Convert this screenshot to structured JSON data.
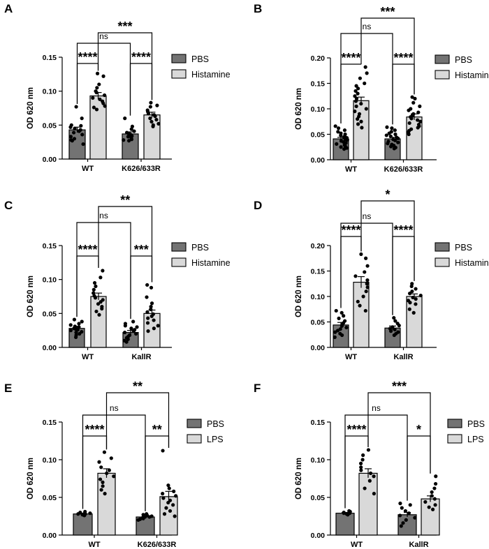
{
  "chart_data": [
    {
      "panel": "A",
      "type": "bar",
      "ylabel": "OD 620 nm",
      "ylim": [
        0,
        0.15
      ],
      "yticks": [
        "0.00",
        "0.05",
        "0.10",
        "0.15"
      ],
      "categories": [
        "WT",
        "K626/633R"
      ],
      "legend": [
        "PBS",
        "Histamine"
      ],
      "series": [
        {
          "name": "PBS",
          "color": "#737373",
          "means": [
            0.043,
            0.037
          ],
          "sem": [
            0.004,
            0.003
          ],
          "points": [
            [
              0.077,
              0.06,
              0.05,
              0.049,
              0.047,
              0.045,
              0.043,
              0.041,
              0.039,
              0.036,
              0.033,
              0.03,
              0.028,
              0.027,
              0.022
            ],
            [
              0.06,
              0.048,
              0.044,
              0.041,
              0.039,
              0.037,
              0.036,
              0.035,
              0.034,
              0.033,
              0.031,
              0.029,
              0.028,
              0.027
            ]
          ]
        },
        {
          "name": "Histamine",
          "color": "#d9d9d9",
          "means": [
            0.093,
            0.065
          ],
          "sem": [
            0.005,
            0.004
          ],
          "points": [
            [
              0.126,
              0.122,
              0.11,
              0.105,
              0.1,
              0.098,
              0.094,
              0.09,
              0.088,
              0.085,
              0.082,
              0.078,
              0.076,
              0.073
            ],
            [
              0.083,
              0.079,
              0.077,
              0.072,
              0.07,
              0.067,
              0.065,
              0.063,
              0.06,
              0.058,
              0.055,
              0.052,
              0.05,
              0.048
            ]
          ]
        }
      ],
      "significance": [
        {
          "label": "****",
          "from": [
            0,
            0
          ],
          "to": [
            0,
            1
          ]
        },
        {
          "label": "****",
          "from": [
            1,
            0
          ],
          "to": [
            1,
            1
          ]
        },
        {
          "label": "***",
          "from": [
            0,
            1
          ],
          "to": [
            1,
            1
          ]
        },
        {
          "label": "ns",
          "from": [
            0,
            0
          ],
          "to": [
            1,
            0
          ]
        }
      ]
    },
    {
      "panel": "B",
      "type": "bar",
      "ylabel": "OD 620 nm",
      "ylim": [
        0,
        0.2
      ],
      "yticks": [
        "0.00",
        "0.05",
        "0.10",
        "0.15",
        "0.20"
      ],
      "categories": [
        "WT",
        "K626/633R"
      ],
      "legend": [
        "PBS",
        "Histamine"
      ],
      "series": [
        {
          "name": "PBS",
          "color": "#737373",
          "means": [
            0.041,
            0.041
          ],
          "sem": [
            0.003,
            0.003
          ],
          "points": [
            [
              0.066,
              0.062,
              0.058,
              0.055,
              0.052,
              0.05,
              0.048,
              0.046,
              0.044,
              0.043,
              0.041,
              0.04,
              0.039,
              0.037,
              0.035,
              0.033,
              0.031,
              0.029,
              0.027,
              0.025,
              0.023,
              0.021
            ],
            [
              0.064,
              0.062,
              0.058,
              0.055,
              0.052,
              0.05,
              0.048,
              0.046,
              0.044,
              0.042,
              0.04,
              0.038,
              0.036,
              0.034,
              0.032,
              0.03,
              0.028,
              0.026,
              0.024,
              0.022
            ]
          ]
        },
        {
          "name": "Histamine",
          "color": "#d9d9d9",
          "means": [
            0.116,
            0.084
          ],
          "sem": [
            0.007,
            0.006
          ],
          "points": [
            [
              0.182,
              0.17,
              0.16,
              0.15,
              0.145,
              0.14,
              0.135,
              0.13,
              0.125,
              0.12,
              0.115,
              0.11,
              0.105,
              0.1,
              0.095,
              0.09,
              0.085,
              0.08,
              0.075,
              0.07,
              0.063
            ],
            [
              0.123,
              0.12,
              0.112,
              0.105,
              0.1,
              0.097,
              0.093,
              0.09,
              0.087,
              0.084,
              0.081,
              0.078,
              0.075,
              0.072,
              0.069,
              0.066,
              0.063,
              0.06,
              0.057,
              0.054,
              0.05
            ]
          ]
        }
      ],
      "significance": [
        {
          "label": "****",
          "from": [
            0,
            0
          ],
          "to": [
            0,
            1
          ]
        },
        {
          "label": "****",
          "from": [
            1,
            0
          ],
          "to": [
            1,
            1
          ]
        },
        {
          "label": "ns",
          "from": [
            0,
            0
          ],
          "to": [
            1,
            0
          ]
        },
        {
          "label": "***",
          "from": [
            0,
            1
          ],
          "to": [
            1,
            1
          ]
        }
      ]
    },
    {
      "panel": "C",
      "type": "bar",
      "ylabel": "OD 620 nm",
      "ylim": [
        0,
        0.15
      ],
      "yticks": [
        "0.00",
        "0.05",
        "0.10",
        "0.15"
      ],
      "categories": [
        "WT",
        "KallR"
      ],
      "legend": [
        "PBS",
        "Histamine"
      ],
      "series": [
        {
          "name": "PBS",
          "color": "#737373",
          "means": [
            0.028,
            0.022
          ],
          "sem": [
            0.003,
            0.003
          ],
          "points": [
            [
              0.041,
              0.038,
              0.035,
              0.033,
              0.031,
              0.03,
              0.028,
              0.027,
              0.026,
              0.025,
              0.023,
              0.022,
              0.02,
              0.018,
              0.015
            ],
            [
              0.038,
              0.035,
              0.032,
              0.03,
              0.028,
              0.026,
              0.024,
              0.022,
              0.02,
              0.018,
              0.016,
              0.014,
              0.012,
              0.01,
              0.008
            ]
          ]
        },
        {
          "name": "Histamine",
          "color": "#d9d9d9",
          "means": [
            0.075,
            0.05
          ],
          "sem": [
            0.005,
            0.005
          ],
          "points": [
            [
              0.113,
              0.103,
              0.095,
              0.09,
              0.085,
              0.08,
              0.076,
              0.073,
              0.07,
              0.067,
              0.064,
              0.06,
              0.057,
              0.053,
              0.048
            ],
            [
              0.092,
              0.088,
              0.074,
              0.065,
              0.06,
              0.056,
              0.052,
              0.049,
              0.046,
              0.043,
              0.04,
              0.036,
              0.032,
              0.028,
              0.024
            ]
          ]
        }
      ],
      "significance": [
        {
          "label": "****",
          "from": [
            0,
            0
          ],
          "to": [
            0,
            1
          ]
        },
        {
          "label": "***",
          "from": [
            1,
            0
          ],
          "to": [
            1,
            1
          ]
        },
        {
          "label": "ns",
          "from": [
            0,
            0
          ],
          "to": [
            1,
            0
          ]
        },
        {
          "label": "**",
          "from": [
            0,
            1
          ],
          "to": [
            1,
            1
          ]
        }
      ]
    },
    {
      "panel": "D",
      "type": "bar",
      "ylabel": "OD 620 nm",
      "ylim": [
        0,
        0.2
      ],
      "yticks": [
        "0.00",
        "0.05",
        "0.10",
        "0.15",
        "0.20"
      ],
      "categories": [
        "WT",
        "KallR"
      ],
      "legend": [
        "PBS",
        "Histamine"
      ],
      "series": [
        {
          "name": "PBS",
          "color": "#737373",
          "means": [
            0.044,
            0.038
          ],
          "sem": [
            0.005,
            0.004
          ],
          "points": [
            [
              0.072,
              0.068,
              0.062,
              0.057,
              0.052,
              0.048,
              0.045,
              0.042,
              0.039,
              0.036,
              0.033,
              0.03,
              0.027,
              0.024,
              0.02
            ],
            [
              0.058,
              0.052,
              0.047,
              0.043,
              0.04,
              0.037,
              0.035,
              0.032,
              0.03,
              0.027,
              0.024
            ]
          ]
        },
        {
          "name": "Histamine",
          "color": "#d9d9d9",
          "means": [
            0.128,
            0.1
          ],
          "sem": [
            0.011,
            0.005
          ],
          "points": [
            [
              0.183,
              0.175,
              0.16,
              0.148,
              0.14,
              0.132,
              0.125,
              0.118,
              0.11,
              0.1,
              0.09,
              0.082,
              0.072
            ],
            [
              0.125,
              0.12,
              0.115,
              0.11,
              0.106,
              0.102,
              0.098,
              0.095,
              0.092,
              0.088,
              0.085,
              0.075,
              0.068
            ]
          ]
        }
      ],
      "significance": [
        {
          "label": "****",
          "from": [
            0,
            0
          ],
          "to": [
            0,
            1
          ]
        },
        {
          "label": "****",
          "from": [
            1,
            0
          ],
          "to": [
            1,
            1
          ]
        },
        {
          "label": "ns",
          "from": [
            0,
            0
          ],
          "to": [
            1,
            0
          ]
        },
        {
          "label": "*",
          "from": [
            0,
            1
          ],
          "to": [
            1,
            1
          ]
        }
      ]
    },
    {
      "panel": "E",
      "type": "bar",
      "ylabel": "OD 620 nm",
      "ylim": [
        0,
        0.15
      ],
      "yticks": [
        "0.00",
        "0.05",
        "0.10",
        "0.15"
      ],
      "categories": [
        "WT",
        "K626/633R"
      ],
      "legend": [
        "PBS",
        "LPS"
      ],
      "series": [
        {
          "name": "PBS",
          "color": "#737373",
          "means": [
            0.028,
            0.024
          ],
          "sem": [
            0.001,
            0.001
          ],
          "points": [
            [
              0.031,
              0.03,
              0.029,
              0.029,
              0.028,
              0.028,
              0.027,
              0.027,
              0.026
            ],
            [
              0.028,
              0.027,
              0.026,
              0.025,
              0.024,
              0.024,
              0.023,
              0.022,
              0.021,
              0.02
            ]
          ]
        },
        {
          "name": "LPS",
          "color": "#d9d9d9",
          "means": [
            0.082,
            0.051
          ],
          "sem": [
            0.006,
            0.007
          ],
          "points": [
            [
              0.11,
              0.102,
              0.097,
              0.09,
              0.086,
              0.082,
              0.078,
              0.074,
              0.07,
              0.065,
              0.06,
              0.055
            ],
            [
              0.112,
              0.066,
              0.062,
              0.058,
              0.055,
              0.052,
              0.049,
              0.046,
              0.043,
              0.04,
              0.036,
              0.032,
              0.028,
              0.025
            ]
          ]
        }
      ],
      "significance": [
        {
          "label": "****",
          "from": [
            0,
            0
          ],
          "to": [
            0,
            1
          ]
        },
        {
          "label": "**",
          "from": [
            1,
            0
          ],
          "to": [
            1,
            1
          ]
        },
        {
          "label": "ns",
          "from": [
            0,
            0
          ],
          "to": [
            1,
            0
          ]
        },
        {
          "label": "**",
          "from": [
            0,
            1
          ],
          "to": [
            1,
            1
          ]
        }
      ]
    },
    {
      "panel": "F",
      "type": "bar",
      "ylabel": "OD 620 nm",
      "ylim": [
        0,
        0.15
      ],
      "yticks": [
        "0.00",
        "0.05",
        "0.10",
        "0.15"
      ],
      "categories": [
        "WT",
        "KallR"
      ],
      "legend": [
        "PBS",
        "LPS"
      ],
      "series": [
        {
          "name": "PBS",
          "color": "#737373",
          "means": [
            0.029,
            0.027
          ],
          "sem": [
            0.001,
            0.003
          ],
          "points": [
            [
              0.032,
              0.031,
              0.03,
              0.029,
              0.029,
              0.028,
              0.028,
              0.027
            ],
            [
              0.042,
              0.04,
              0.036,
              0.032,
              0.029,
              0.026,
              0.023,
              0.02,
              0.016,
              0.012
            ]
          ]
        },
        {
          "name": "LPS",
          "color": "#d9d9d9",
          "means": [
            0.082,
            0.048
          ],
          "sem": [
            0.006,
            0.004
          ],
          "points": [
            [
              0.113,
              0.106,
              0.1,
              0.095,
              0.09,
              0.086,
              0.082,
              0.078,
              0.072,
              0.062,
              0.055
            ],
            [
              0.078,
              0.068,
              0.062,
              0.057,
              0.052,
              0.048,
              0.044,
              0.04,
              0.037,
              0.034
            ]
          ]
        }
      ],
      "significance": [
        {
          "label": "****",
          "from": [
            0,
            0
          ],
          "to": [
            0,
            1
          ]
        },
        {
          "label": "*",
          "from": [
            1,
            0
          ],
          "to": [
            1,
            1
          ]
        },
        {
          "label": "ns",
          "from": [
            0,
            0
          ],
          "to": [
            1,
            0
          ]
        },
        {
          "label": "***",
          "from": [
            0,
            1
          ],
          "to": [
            1,
            1
          ]
        }
      ]
    }
  ]
}
